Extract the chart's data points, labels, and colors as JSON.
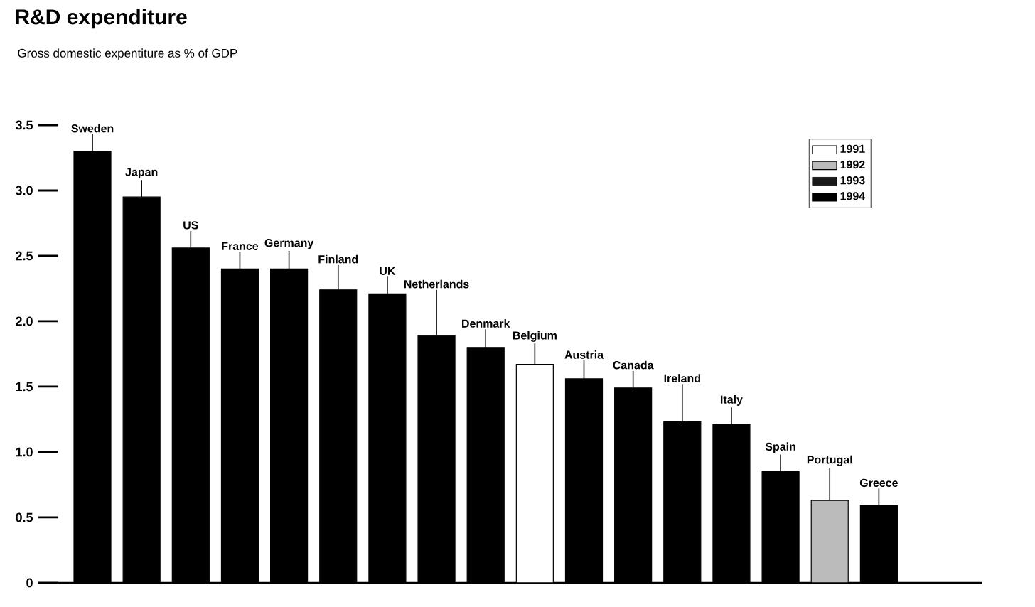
{
  "chart_data": {
    "type": "bar",
    "title": "R&D expenditure",
    "subtitle": "Gross domestic expentiture as % of GDP",
    "categories": [
      "Sweden",
      "Japan",
      "US",
      "France",
      "Germany",
      "Finland",
      "UK",
      "Netherlands",
      "Denmark",
      "Belgium",
      "Austria",
      "Canada",
      "Ireland",
      "Italy",
      "Spain",
      "Portugal",
      "Greece"
    ],
    "series": [
      {
        "name": "1991",
        "color": "#ffffff",
        "values": [
          null,
          null,
          null,
          null,
          null,
          null,
          null,
          null,
          null,
          1.67,
          null,
          null,
          null,
          null,
          null,
          null,
          null
        ]
      },
      {
        "name": "1992",
        "color": "#bbbbbb",
        "values": [
          null,
          null,
          null,
          null,
          null,
          null,
          null,
          null,
          null,
          null,
          null,
          null,
          null,
          null,
          null,
          0.63,
          null
        ]
      },
      {
        "name": "1993",
        "color": "#1a1a1a",
        "values": [
          null,
          null,
          null,
          null,
          null,
          null,
          null,
          null,
          null,
          null,
          null,
          null,
          null,
          null,
          null,
          null,
          null
        ]
      },
      {
        "name": "1994",
        "color": "#000000",
        "values": [
          3.3,
          2.95,
          2.56,
          2.4,
          2.4,
          2.24,
          2.21,
          1.89,
          1.8,
          null,
          1.56,
          1.49,
          1.23,
          1.21,
          0.85,
          null,
          0.59
        ]
      }
    ],
    "ylim": [
      0,
      3.5
    ],
    "yticks": [
      0,
      0.5,
      {
        "value": 1,
        "label": "1.0"
      },
      1.5,
      {
        "value": 2,
        "label": "2.0"
      },
      2.5,
      {
        "value": 3,
        "label": "3.0"
      },
      3.5
    ],
    "legend": "top right",
    "grid": false
  }
}
